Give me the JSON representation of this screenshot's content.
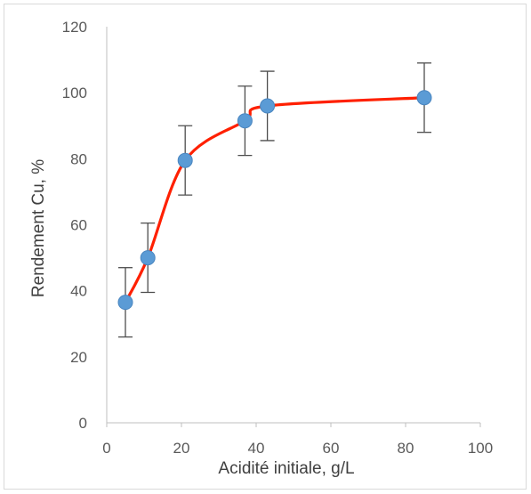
{
  "chart_data": {
    "type": "scatter",
    "title": "",
    "xlabel": "Acidité initiale, g/L",
    "ylabel": "Rendement Cu, %",
    "xlim": [
      0,
      100
    ],
    "ylim": [
      0,
      120
    ],
    "xticks": [
      0,
      20,
      40,
      60,
      80,
      100
    ],
    "yticks": [
      0,
      20,
      40,
      60,
      80,
      100,
      120
    ],
    "grid": false,
    "series": [
      {
        "x": [
          5,
          11,
          21,
          37,
          43,
          85
        ],
        "y": [
          36.5,
          50,
          79.5,
          91.5,
          96,
          98.5
        ],
        "error": [
          10.5,
          10.5,
          10.5,
          10.5,
          10.5,
          10.5
        ],
        "marker_color": "#5b9bd5",
        "line_color": "#ff2000",
        "smooth": true
      }
    ]
  }
}
